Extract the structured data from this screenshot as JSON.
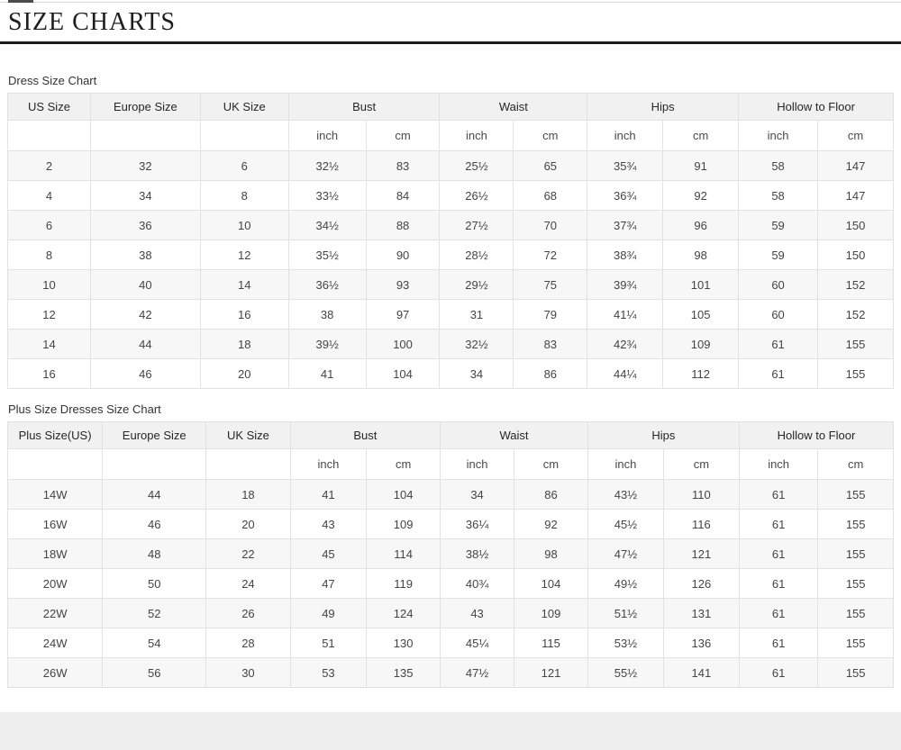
{
  "title": "SIZE CHARTS",
  "colors": {
    "title_rule": "#1c1c1c",
    "header_bg": "#f1f1f2",
    "row_stripe_bg": "#f7f7f8",
    "table_border": "#e1e1e2",
    "text": "#444444",
    "bottom_band": "#ededee"
  },
  "tables": [
    {
      "label": "Dress Size Chart",
      "group_headers": [
        {
          "label": "US Size",
          "span": 1
        },
        {
          "label": "Europe Size",
          "span": 1
        },
        {
          "label": "UK Size",
          "span": 1
        },
        {
          "label": "Bust",
          "span": 2
        },
        {
          "label": "Waist",
          "span": 2
        },
        {
          "label": "Hips",
          "span": 2
        },
        {
          "label": "Hollow to Floor",
          "span": 2
        }
      ],
      "unit_headers": [
        "",
        "",
        "",
        "inch",
        "cm",
        "inch",
        "cm",
        "inch",
        "cm",
        "inch",
        "cm"
      ],
      "rows": [
        [
          "2",
          "32",
          "6",
          "32½",
          "83",
          "25½",
          "65",
          "35¾",
          "91",
          "58",
          "147"
        ],
        [
          "4",
          "34",
          "8",
          "33½",
          "84",
          "26½",
          "68",
          "36¾",
          "92",
          "58",
          "147"
        ],
        [
          "6",
          "36",
          "10",
          "34½",
          "88",
          "27½",
          "70",
          "37¾",
          "96",
          "59",
          "150"
        ],
        [
          "8",
          "38",
          "12",
          "35½",
          "90",
          "28½",
          "72",
          "38¾",
          "98",
          "59",
          "150"
        ],
        [
          "10",
          "40",
          "14",
          "36½",
          "93",
          "29½",
          "75",
          "39¾",
          "101",
          "60",
          "152"
        ],
        [
          "12",
          "42",
          "16",
          "38",
          "97",
          "31",
          "79",
          "41¼",
          "105",
          "60",
          "152"
        ],
        [
          "14",
          "44",
          "18",
          "39½",
          "100",
          "32½",
          "83",
          "42¾",
          "109",
          "61",
          "155"
        ],
        [
          "16",
          "46",
          "20",
          "41",
          "104",
          "34",
          "86",
          "44¼",
          "112",
          "61",
          "155"
        ]
      ]
    },
    {
      "label": "Plus Size Dresses Size Chart",
      "group_headers": [
        {
          "label": "Plus Size(US)",
          "span": 1
        },
        {
          "label": "Europe Size",
          "span": 1
        },
        {
          "label": "UK Size",
          "span": 1
        },
        {
          "label": "Bust",
          "span": 2
        },
        {
          "label": "Waist",
          "span": 2
        },
        {
          "label": "Hips",
          "span": 2
        },
        {
          "label": "Hollow to Floor",
          "span": 2
        }
      ],
      "unit_headers": [
        "",
        "",
        "",
        "inch",
        "cm",
        "inch",
        "cm",
        "inch",
        "cm",
        "inch",
        "cm"
      ],
      "rows": [
        [
          "14W",
          "44",
          "18",
          "41",
          "104",
          "34",
          "86",
          "43½",
          "110",
          "61",
          "155"
        ],
        [
          "16W",
          "46",
          "20",
          "43",
          "109",
          "36¼",
          "92",
          "45½",
          "116",
          "61",
          "155"
        ],
        [
          "18W",
          "48",
          "22",
          "45",
          "114",
          "38½",
          "98",
          "47½",
          "121",
          "61",
          "155"
        ],
        [
          "20W",
          "50",
          "24",
          "47",
          "119",
          "40¾",
          "104",
          "49½",
          "126",
          "61",
          "155"
        ],
        [
          "22W",
          "52",
          "26",
          "49",
          "124",
          "43",
          "109",
          "51½",
          "131",
          "61",
          "155"
        ],
        [
          "24W",
          "54",
          "28",
          "51",
          "130",
          "45¼",
          "115",
          "53½",
          "136",
          "61",
          "155"
        ],
        [
          "26W",
          "56",
          "30",
          "53",
          "135",
          "47½",
          "121",
          "55½",
          "141",
          "61",
          "155"
        ]
      ]
    }
  ]
}
